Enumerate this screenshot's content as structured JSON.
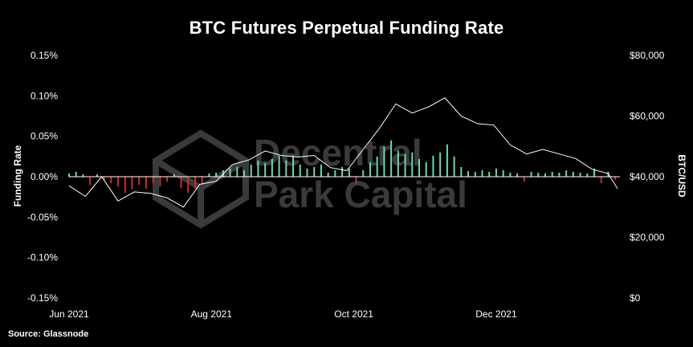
{
  "title": "BTC Futures Perpetual Funding Rate",
  "source": "Source: Glassnode",
  "watermark": {
    "line1": "Decentral",
    "line2": "Park Capital"
  },
  "colors": {
    "background": "#000000",
    "positive": "#6fd6b0",
    "negative": "#d42a2a",
    "price_line": "#ffffff",
    "text": "#ffffff",
    "zero_line": "#ffffff",
    "watermark": "#3a3a3a"
  },
  "chart_data": {
    "type": "bar+line",
    "title": "BTC Futures Perpetual Funding Rate",
    "ylabel": "Funding Rate",
    "y2label": "BTC/USD",
    "ylim": [
      -0.15,
      0.15
    ],
    "y2lim": [
      0,
      80000
    ],
    "yticks": [
      "0.15%",
      "0.10%",
      "0.05%",
      "0.00%",
      "-0.05%",
      "-0.10%",
      "-0.15%"
    ],
    "yticks_values": [
      0.15,
      0.1,
      0.05,
      0.0,
      -0.05,
      -0.1,
      -0.15
    ],
    "y2ticks": [
      "$80,000",
      "$60,000",
      "$40,000",
      "$20,000",
      "$0"
    ],
    "y2ticks_values": [
      80000,
      60000,
      40000,
      20000,
      0
    ],
    "xlim": [
      "2021-06-01",
      "2022-01-23"
    ],
    "xticks": [
      "Jun 2021",
      "Aug 2021",
      "Oct 2021",
      "Dec 2021"
    ],
    "xticks_dates": [
      "2021-06-01",
      "2021-08-01",
      "2021-10-01",
      "2021-12-01"
    ],
    "grid": false,
    "series": [
      {
        "name": "Funding Rate",
        "type": "bar",
        "x": [
          "2021-06-01",
          "2021-06-04",
          "2021-06-07",
          "2021-06-10",
          "2021-06-13",
          "2021-06-16",
          "2021-06-19",
          "2021-06-22",
          "2021-06-25",
          "2021-06-28",
          "2021-07-01",
          "2021-07-04",
          "2021-07-07",
          "2021-07-10",
          "2021-07-13",
          "2021-07-16",
          "2021-07-19",
          "2021-07-22",
          "2021-07-25",
          "2021-07-28",
          "2021-07-31",
          "2021-08-03",
          "2021-08-06",
          "2021-08-09",
          "2021-08-12",
          "2021-08-15",
          "2021-08-18",
          "2021-08-21",
          "2021-08-24",
          "2021-08-27",
          "2021-08-30",
          "2021-09-02",
          "2021-09-05",
          "2021-09-08",
          "2021-09-11",
          "2021-09-14",
          "2021-09-17",
          "2021-09-20",
          "2021-09-23",
          "2021-09-26",
          "2021-09-29",
          "2021-10-02",
          "2021-10-05",
          "2021-10-08",
          "2021-10-11",
          "2021-10-14",
          "2021-10-17",
          "2021-10-20",
          "2021-10-23",
          "2021-10-26",
          "2021-10-29",
          "2021-11-01",
          "2021-11-04",
          "2021-11-07",
          "2021-11-10",
          "2021-11-13",
          "2021-11-16",
          "2021-11-19",
          "2021-11-22",
          "2021-11-25",
          "2021-11-28",
          "2021-12-01",
          "2021-12-04",
          "2021-12-07",
          "2021-12-10",
          "2021-12-13",
          "2021-12-16",
          "2021-12-19",
          "2021-12-22",
          "2021-12-25",
          "2021-12-28",
          "2021-12-31",
          "2022-01-03",
          "2022-01-06",
          "2022-01-09",
          "2022-01-12",
          "2022-01-15",
          "2022-01-18",
          "2022-01-21"
        ],
        "values": [
          0.004,
          0.006,
          0.003,
          -0.01,
          0.003,
          -0.004,
          -0.008,
          -0.012,
          -0.02,
          -0.015,
          -0.01,
          -0.015,
          -0.008,
          -0.012,
          -0.006,
          0.003,
          -0.014,
          -0.02,
          -0.015,
          -0.01,
          0.004,
          0.005,
          0.008,
          0.01,
          0.012,
          0.008,
          0.015,
          0.02,
          0.017,
          0.022,
          0.026,
          0.02,
          0.026,
          0.015,
          0.01,
          0.012,
          0.015,
          0.005,
          0.008,
          0.012,
          0.01,
          -0.008,
          0.008,
          0.018,
          0.025,
          0.038,
          0.045,
          0.032,
          0.028,
          0.03,
          0.022,
          0.018,
          0.026,
          0.03,
          0.04,
          0.025,
          0.012,
          0.007,
          0.006,
          0.008,
          0.006,
          0.01,
          0.008,
          0.005,
          0.004,
          -0.006,
          0.006,
          0.005,
          0.004,
          0.006,
          0.005,
          0.008,
          0.006,
          0.005,
          0.004,
          0.01,
          -0.008,
          0.006,
          -0.004
        ]
      },
      {
        "name": "BTC/USD",
        "type": "line",
        "axis": "right",
        "x": [
          "2021-06-01",
          "2021-06-08",
          "2021-06-15",
          "2021-06-22",
          "2021-06-29",
          "2021-07-06",
          "2021-07-13",
          "2021-07-20",
          "2021-07-27",
          "2021-08-03",
          "2021-08-10",
          "2021-08-17",
          "2021-08-24",
          "2021-08-31",
          "2021-09-07",
          "2021-09-14",
          "2021-09-21",
          "2021-09-28",
          "2021-10-05",
          "2021-10-12",
          "2021-10-19",
          "2021-10-26",
          "2021-11-02",
          "2021-11-09",
          "2021-11-16",
          "2021-11-23",
          "2021-11-30",
          "2021-12-07",
          "2021-12-14",
          "2021-12-21",
          "2021-12-28",
          "2022-01-04",
          "2022-01-11",
          "2022-01-18",
          "2022-01-22"
        ],
        "values": [
          37000,
          33500,
          40000,
          32000,
          35000,
          34500,
          33000,
          30000,
          37500,
          38500,
          44000,
          45500,
          48500,
          47000,
          46500,
          47000,
          43000,
          42000,
          49000,
          56000,
          64000,
          61000,
          63000,
          66000,
          60000,
          57500,
          57000,
          50500,
          47500,
          49000,
          47500,
          46000,
          42500,
          41000,
          36000
        ]
      }
    ]
  }
}
